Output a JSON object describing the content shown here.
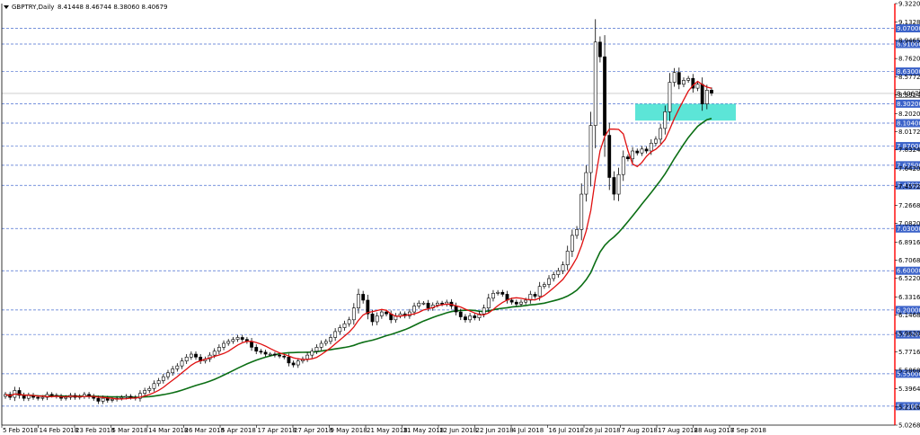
{
  "header": {
    "symbol": "GBPTRY,Daily",
    "ohlc": "8.41448 8.46744 8.38060 8.40679"
  },
  "colors": {
    "bg": "#ffffff",
    "axis": "#000000",
    "level_line": "#4a6fd0",
    "level_label": "#3c63c9",
    "current_line": "#c8c8c8",
    "ma_fast": "#e01010",
    "ma_slow": "#0b6e14",
    "zone": "#40e0d0",
    "frame_right": "#ff0000",
    "bull_body": "#ffffff",
    "bear_body": "#000000"
  },
  "chart_data": {
    "type": "candlestick",
    "title": "GBPTRY,Daily",
    "y_range": [
      5.0268,
      9.322
    ],
    "price_ticks": [
      "9.32200",
      "9.13280",
      "8.94650",
      "8.76200",
      "8.57720",
      "8.39240",
      "8.20200",
      "8.01720",
      "7.83240",
      "7.64200",
      "7.45720",
      "7.26680",
      "7.08200",
      "6.89160",
      "6.70680",
      "6.52200",
      "6.33160",
      "6.14680",
      "5.96200",
      "5.77160",
      "5.58680",
      "5.39640",
      "5.21160",
      "5.02680"
    ],
    "level_labels": [
      "9.07000",
      "8.91000",
      "8.63000",
      "8.30200",
      "8.10400",
      "7.87000",
      "7.67500",
      "7.47000",
      "7.03000",
      "6.60000",
      "6.20000",
      "5.95000",
      "5.55000",
      "5.22000"
    ],
    "current_price": "8.40679",
    "x_labels": [
      "5 Feb 2018",
      "14 Feb 2018",
      "23 Feb 2018",
      "5 Mar 2018",
      "14 Mar 2018",
      "26 Mar 2018",
      "5 Apr 2018",
      "17 Apr 2018",
      "27 Apr 2018",
      "9 May 2018",
      "21 May 2018",
      "31 May 2018",
      "12 Jun 2018",
      "22 Jun 2018",
      "4 Jul 2018",
      "16 Jul 2018",
      "26 Jul 2018",
      "7 Aug 2018",
      "17 Aug 2018",
      "28 Aug 2018",
      "7 Sep 2018"
    ],
    "demand_zone": {
      "low": 8.13,
      "high": 8.3
    },
    "candles_close": [
      5.34,
      5.31,
      5.38,
      5.33,
      5.3,
      5.33,
      5.31,
      5.3,
      5.31,
      5.34,
      5.33,
      5.32,
      5.3,
      5.31,
      5.33,
      5.31,
      5.32,
      5.34,
      5.32,
      5.3,
      5.27,
      5.3,
      5.28,
      5.29,
      5.3,
      5.31,
      5.32,
      5.31,
      5.3,
      5.35,
      5.38,
      5.4,
      5.45,
      5.48,
      5.52,
      5.56,
      5.6,
      5.63,
      5.68,
      5.72,
      5.75,
      5.72,
      5.68,
      5.7,
      5.74,
      5.78,
      5.82,
      5.86,
      5.88,
      5.9,
      5.92,
      5.9,
      5.88,
      5.82,
      5.78,
      5.77,
      5.75,
      5.75,
      5.74,
      5.73,
      5.72,
      5.66,
      5.64,
      5.68,
      5.7,
      5.74,
      5.78,
      5.82,
      5.86,
      5.88,
      5.92,
      5.98,
      6.02,
      6.06,
      6.1,
      6.22,
      6.36,
      6.3,
      6.16,
      6.08,
      6.14,
      6.18,
      6.16,
      6.1,
      6.14,
      6.16,
      6.14,
      6.18,
      6.24,
      6.27,
      6.27,
      6.22,
      6.25,
      6.27,
      6.26,
      6.28,
      6.24,
      6.18,
      6.13,
      6.1,
      6.14,
      6.12,
      6.16,
      6.22,
      6.32,
      6.37,
      6.38,
      6.36,
      6.3,
      6.28,
      6.26,
      6.28,
      6.3,
      6.36,
      6.34,
      6.44,
      6.46,
      6.52,
      6.56,
      6.6,
      6.66,
      6.8,
      6.96,
      7.02,
      7.38,
      7.6,
      8.08,
      8.93,
      8.78,
      7.98,
      7.55,
      7.38,
      7.58,
      7.76,
      7.74,
      7.82,
      7.8,
      7.84,
      7.82,
      7.9,
      7.94,
      8.05,
      8.22,
      8.52,
      8.62,
      8.5,
      8.54,
      8.56,
      8.46,
      8.5,
      8.3,
      8.44,
      8.41
    ],
    "ma_fast_label": "",
    "ma_slow_label": ""
  }
}
